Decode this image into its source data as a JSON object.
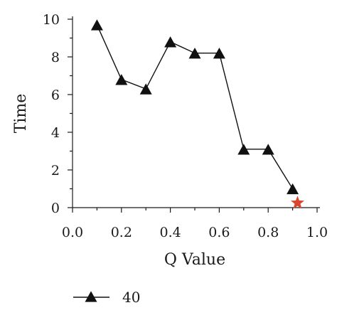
{
  "chart_data": {
    "type": "line",
    "title": "",
    "xlabel": "Q Value",
    "ylabel": "Time",
    "xlim": [
      0.0,
      1.0
    ],
    "ylim": [
      0,
      10
    ],
    "x_ticks": [
      "0.0",
      "0.2",
      "0.4",
      "0.6",
      "0.8",
      "1.0"
    ],
    "y_ticks": [
      "0",
      "2",
      "4",
      "6",
      "8",
      "10"
    ],
    "grid": false,
    "legend_position": "bottom-left",
    "series": [
      {
        "name": "40",
        "marker": "triangle",
        "color": "#111111",
        "x": [
          0.1,
          0.2,
          0.3,
          0.4,
          0.5,
          0.6,
          0.7,
          0.8,
          0.9
        ],
        "y": [
          9.7,
          6.8,
          6.3,
          8.8,
          8.2,
          8.2,
          3.1,
          3.1,
          1.0
        ]
      }
    ],
    "highlight_point": {
      "marker": "star",
      "color": "#d9442b",
      "x": 0.92,
      "y": 0.25
    }
  }
}
